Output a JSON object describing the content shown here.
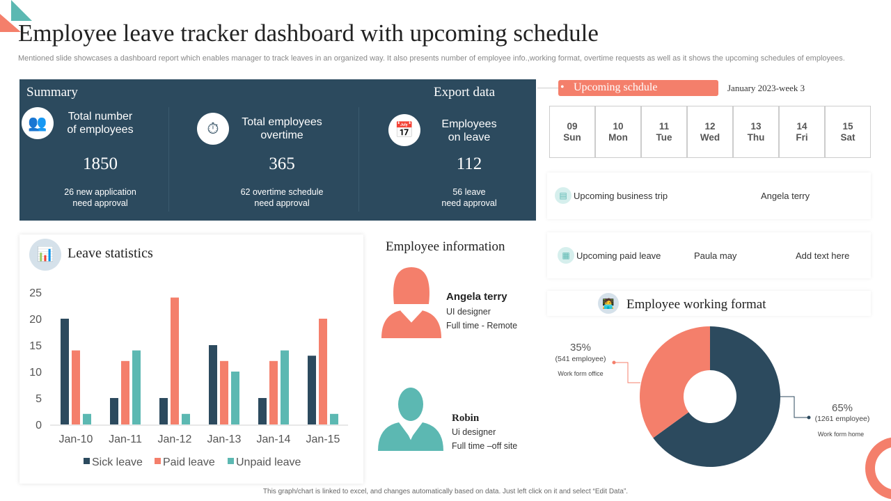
{
  "title": "Employee leave tracker dashboard with upcoming schedule",
  "subtitle": "Mentioned slide showcases a dashboard report which enables manager to track leaves in an organized way.  It also presents number of employee info.,working format, overtime requests as well as it shows the upcoming schedules of employees.",
  "colors": {
    "dark": "#2c4a5e",
    "salmon": "#f47f6b",
    "teal": "#5cb8b2"
  },
  "summary": {
    "heading": "Summary",
    "export": "Export data",
    "cards": [
      {
        "icon": "people-group-icon",
        "label1": "Total number",
        "label2": "of employees",
        "value": "1850",
        "note1": "26 new application",
        "note2": "need approval"
      },
      {
        "icon": "stopwatch-icon",
        "label1": "Total employees",
        "label2": "overtime",
        "value": "365",
        "note1": "62 overtime  schedule",
        "note2": "need approval"
      },
      {
        "icon": "calendar-icon",
        "label1": "Employees",
        "label2": "on leave",
        "value": "112",
        "note1": "56 leave",
        "note2": "need approval"
      }
    ]
  },
  "schedule": {
    "label": "Upcoming schdule",
    "week": "January 2023-week 3",
    "days": [
      {
        "d": "09",
        "w": "Sun"
      },
      {
        "d": "10",
        "w": "Mon"
      },
      {
        "d": "11",
        "w": "Tue"
      },
      {
        "d": "12",
        "w": "Wed"
      },
      {
        "d": "13",
        "w": "Thu"
      },
      {
        "d": "14",
        "w": "Fri"
      },
      {
        "d": "15",
        "w": "Sat"
      }
    ],
    "trip": {
      "label": "Upcoming business trip",
      "name": "Angela terry"
    },
    "paid": {
      "label": "Upcoming paid leave",
      "name": "Paula may",
      "extra": "Add text here"
    }
  },
  "leave_stats": {
    "heading": "Leave statistics"
  },
  "employee_info": {
    "heading": "Employee information",
    "people": [
      {
        "name": "Angela terry",
        "role": "UI designer",
        "format": "Full time - Remote"
      },
      {
        "name": "Robin",
        "role": "Ui designer",
        "format": "Full time –off site"
      }
    ]
  },
  "working_format": {
    "heading": "Employee working format"
  },
  "footer": "This graph/chart is linked to excel, and changes automatically based on data. Just left click on it and select “Edit Data”.",
  "chart_data": [
    {
      "type": "bar",
      "categories": [
        "Jan-10",
        "Jan-11",
        "Jan-12",
        "Jan-13",
        "Jan-14",
        "Jan-15"
      ],
      "series": [
        {
          "name": "Sick leave",
          "values": [
            20,
            5,
            5,
            15,
            5,
            13
          ],
          "color": "#2c4a5e"
        },
        {
          "name": "Paid leave",
          "values": [
            14,
            12,
            24,
            12,
            12,
            20
          ],
          "color": "#f47f6b"
        },
        {
          "name": "Unpaid leave",
          "values": [
            2,
            14,
            2,
            10,
            14,
            2
          ],
          "color": "#5cb8b2"
        }
      ],
      "yticks": [
        0,
        5,
        10,
        15,
        20,
        25
      ],
      "ylim": [
        0,
        25
      ],
      "legend": "bottom",
      "grid": false
    },
    {
      "type": "pie",
      "donut": true,
      "slices": [
        {
          "name": "Work form home",
          "pct": "65%",
          "detail": "(1261 employee)",
          "value": 65,
          "color": "#2c4a5e"
        },
        {
          "name": "Work form office",
          "pct": "35%",
          "detail": "(541 employee)",
          "value": 35,
          "color": "#f47f6b"
        }
      ]
    }
  ]
}
